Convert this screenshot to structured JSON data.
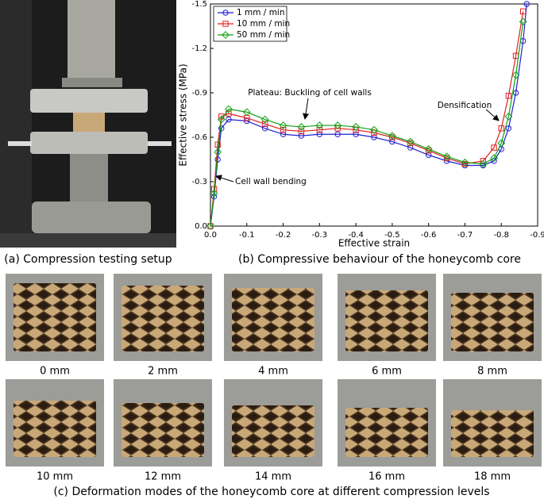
{
  "chart_data": {
    "type": "line",
    "xlabel": "Effective strain",
    "ylabel": "Effective stress (MPa)",
    "x": [
      0,
      -0.01,
      -0.02,
      -0.03,
      -0.05,
      -0.1,
      -0.15,
      -0.2,
      -0.25,
      -0.3,
      -0.35,
      -0.4,
      -0.45,
      -0.5,
      -0.55,
      -0.6,
      -0.65,
      -0.7,
      -0.75,
      -0.78,
      -0.8,
      -0.82,
      -0.84,
      -0.86,
      -0.87
    ],
    "series": [
      {
        "name": "1 mm / min",
        "color": "#2020d0",
        "marker": "circle",
        "values": [
          0,
          -0.2,
          -0.45,
          -0.66,
          -0.72,
          -0.71,
          -0.66,
          -0.62,
          -0.61,
          -0.62,
          -0.62,
          -0.62,
          -0.6,
          -0.57,
          -0.53,
          -0.48,
          -0.44,
          -0.41,
          -0.41,
          -0.44,
          -0.52,
          -0.66,
          -0.9,
          -1.25,
          -1.5
        ]
      },
      {
        "name": "10 mm / min",
        "color": "#e02020",
        "marker": "square",
        "values": [
          0,
          -0.25,
          -0.55,
          -0.74,
          -0.76,
          -0.73,
          -0.69,
          -0.65,
          -0.64,
          -0.65,
          -0.66,
          -0.65,
          -0.63,
          -0.6,
          -0.56,
          -0.51,
          -0.46,
          -0.42,
          -0.44,
          -0.53,
          -0.66,
          -0.88,
          -1.15,
          -1.45,
          null
        ]
      },
      {
        "name": "50 mm / min",
        "color": "#10a010",
        "marker": "diamond",
        "values": [
          0,
          -0.22,
          -0.5,
          -0.72,
          -0.79,
          -0.77,
          -0.72,
          -0.68,
          -0.67,
          -0.68,
          -0.68,
          -0.67,
          -0.65,
          -0.61,
          -0.57,
          -0.52,
          -0.47,
          -0.43,
          -0.42,
          -0.46,
          -0.56,
          -0.74,
          -1.02,
          -1.38,
          null
        ]
      }
    ],
    "xlim": [
      0,
      -0.9
    ],
    "xticks": [
      {
        "value": 0,
        "label": "0.0"
      },
      -0.1,
      -0.2,
      -0.3,
      -0.4,
      -0.5,
      -0.6,
      -0.7,
      -0.8,
      -0.9
    ],
    "ylim": [
      0,
      -1.5
    ],
    "yticks": [
      {
        "value": 0,
        "label": "0.0"
      },
      -0.3,
      -0.6,
      -0.9,
      -1.2,
      -1.5
    ],
    "legend": "upper-left",
    "annotations": [
      "Plateau: Buckling of cell walls",
      "Densification",
      "Cell wall bending"
    ]
  },
  "captions": {
    "a": "(a) Compression testing setup",
    "b": "(b) Compressive behaviour of the honeycomb core",
    "c": "(c) Deformation modes of the honeycomb core at different compression levels"
  },
  "deformation_labels": [
    "0 mm",
    "2 mm",
    "4 mm",
    "6 mm",
    "8 mm",
    "10 mm",
    "12 mm",
    "14 mm",
    "16 mm",
    "18 mm"
  ]
}
